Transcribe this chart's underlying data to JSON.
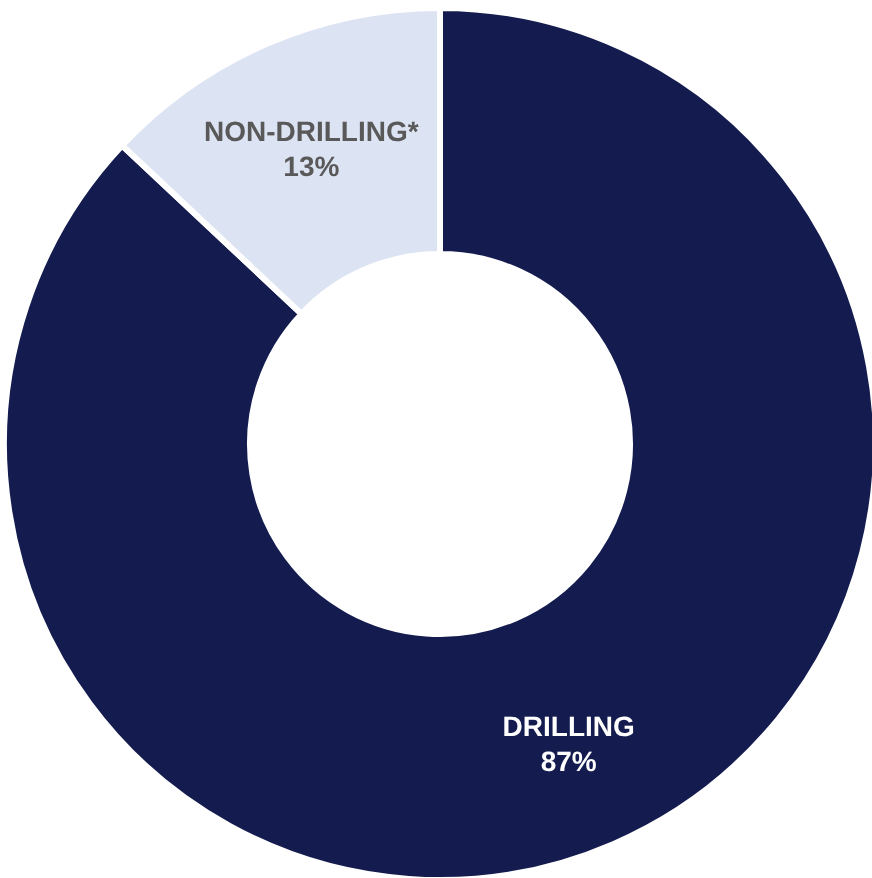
{
  "chart_data": {
    "type": "donut",
    "categories": [
      "DRILLING",
      "NON-DRILLING*"
    ],
    "values": [
      87,
      13
    ],
    "value_labels": [
      "87%",
      "13%"
    ],
    "colors": [
      "#141c4f",
      "#dce3f3"
    ]
  }
}
